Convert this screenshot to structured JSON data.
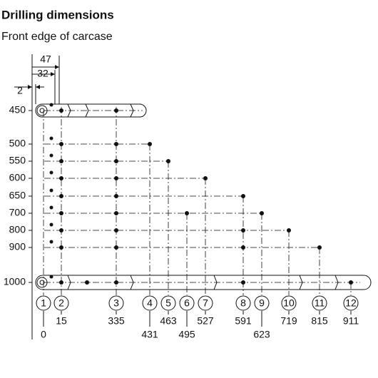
{
  "header": {
    "title": "Drilling dimensions",
    "subtitle": "Front edge of carcase"
  },
  "top_dimensions": [
    47,
    32,
    2
  ],
  "rows": [
    450,
    500,
    550,
    600,
    650,
    700,
    800,
    900,
    1000
  ],
  "columns": [
    {
      "number": 1,
      "position": 0
    },
    {
      "number": 2,
      "position": 15
    },
    {
      "number": 3,
      "position": 335
    },
    {
      "number": 4,
      "position": 431
    },
    {
      "number": 5,
      "position": 463
    },
    {
      "number": 6,
      "position": 495
    },
    {
      "number": 7,
      "position": 527
    },
    {
      "number": 8,
      "position": 591
    },
    {
      "number": 9,
      "position": 623
    },
    {
      "number": 10,
      "position": 719
    },
    {
      "number": 11,
      "position": 815
    },
    {
      "number": 12,
      "position": 911
    }
  ]
}
